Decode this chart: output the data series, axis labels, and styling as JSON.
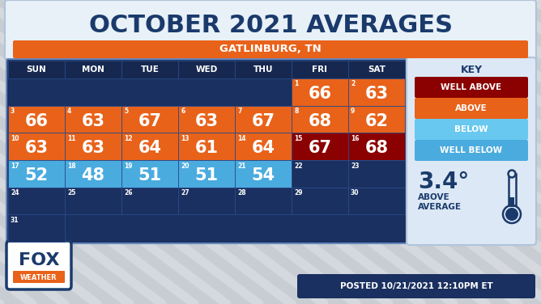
{
  "title": "OCTOBER 2021 AVERAGES",
  "subtitle": "GATLINBURG, TN",
  "posted": "POSTED 10/21/2021 12:10PM ET",
  "bg_color": "#c8cdd4",
  "title_color": "#1a3a6b",
  "subtitle_bg": "#e8621a",
  "calendar_bg": "#1a3060",
  "cell_border_color": "#2a4a8a",
  "day_headers": [
    "SUN",
    "MON",
    "TUE",
    "WED",
    "THU",
    "FRI",
    "SAT"
  ],
  "days": [
    {
      "date": 1,
      "temp": 66,
      "color": "above",
      "col": 5,
      "row": 0
    },
    {
      "date": 2,
      "temp": 63,
      "color": "above",
      "col": 6,
      "row": 0
    },
    {
      "date": 3,
      "temp": 66,
      "color": "above",
      "col": 0,
      "row": 1
    },
    {
      "date": 4,
      "temp": 63,
      "color": "above",
      "col": 1,
      "row": 1
    },
    {
      "date": 5,
      "temp": 67,
      "color": "above",
      "col": 2,
      "row": 1
    },
    {
      "date": 6,
      "temp": 63,
      "color": "above",
      "col": 3,
      "row": 1
    },
    {
      "date": 7,
      "temp": 67,
      "color": "above",
      "col": 4,
      "row": 1
    },
    {
      "date": 8,
      "temp": 68,
      "color": "above",
      "col": 5,
      "row": 1
    },
    {
      "date": 9,
      "temp": 62,
      "color": "above",
      "col": 6,
      "row": 1
    },
    {
      "date": 10,
      "temp": 63,
      "color": "above",
      "col": 0,
      "row": 2
    },
    {
      "date": 11,
      "temp": 63,
      "color": "above",
      "col": 1,
      "row": 2
    },
    {
      "date": 12,
      "temp": 64,
      "color": "above",
      "col": 2,
      "row": 2
    },
    {
      "date": 13,
      "temp": 61,
      "color": "above",
      "col": 3,
      "row": 2
    },
    {
      "date": 14,
      "temp": 64,
      "color": "above",
      "col": 4,
      "row": 2
    },
    {
      "date": 15,
      "temp": 67,
      "color": "well_above",
      "col": 5,
      "row": 2
    },
    {
      "date": 16,
      "temp": 68,
      "color": "well_above",
      "col": 6,
      "row": 2
    },
    {
      "date": 17,
      "temp": 52,
      "color": "well_below",
      "col": 0,
      "row": 3
    },
    {
      "date": 18,
      "temp": 48,
      "color": "well_below",
      "col": 1,
      "row": 3
    },
    {
      "date": 19,
      "temp": 51,
      "color": "well_below",
      "col": 2,
      "row": 3
    },
    {
      "date": 20,
      "temp": 51,
      "color": "well_below",
      "col": 3,
      "row": 3
    },
    {
      "date": 21,
      "temp": 54,
      "color": "well_below",
      "col": 4,
      "row": 3
    },
    {
      "date": 22,
      "temp": null,
      "color": null,
      "col": 5,
      "row": 3
    },
    {
      "date": 23,
      "temp": null,
      "color": null,
      "col": 6,
      "row": 3
    },
    {
      "date": 24,
      "temp": null,
      "color": null,
      "col": 0,
      "row": 4
    },
    {
      "date": 25,
      "temp": null,
      "color": null,
      "col": 1,
      "row": 4
    },
    {
      "date": 26,
      "temp": null,
      "color": null,
      "col": 2,
      "row": 4
    },
    {
      "date": 27,
      "temp": null,
      "color": null,
      "col": 3,
      "row": 4
    },
    {
      "date": 28,
      "temp": null,
      "color": null,
      "col": 4,
      "row": 4
    },
    {
      "date": 29,
      "temp": null,
      "color": null,
      "col": 5,
      "row": 4
    },
    {
      "date": 30,
      "temp": null,
      "color": null,
      "col": 6,
      "row": 4
    },
    {
      "date": 31,
      "temp": null,
      "color": null,
      "col": 0,
      "row": 5
    }
  ],
  "color_map": {
    "well_above": "#8b0000",
    "above": "#e8621a",
    "below": "#5bc8f0",
    "well_below": "#4aabde",
    "none": "#1a3060"
  },
  "key_labels": [
    "WELL ABOVE",
    "ABOVE",
    "BELOW",
    "WELL BELOW"
  ],
  "key_colors": [
    "#8b0000",
    "#e8621a",
    "#68c8ef",
    "#4aabde"
  ],
  "avg_value": "3.4°",
  "avg_label1": "ABOVE",
  "avg_label2": "AVERAGE"
}
